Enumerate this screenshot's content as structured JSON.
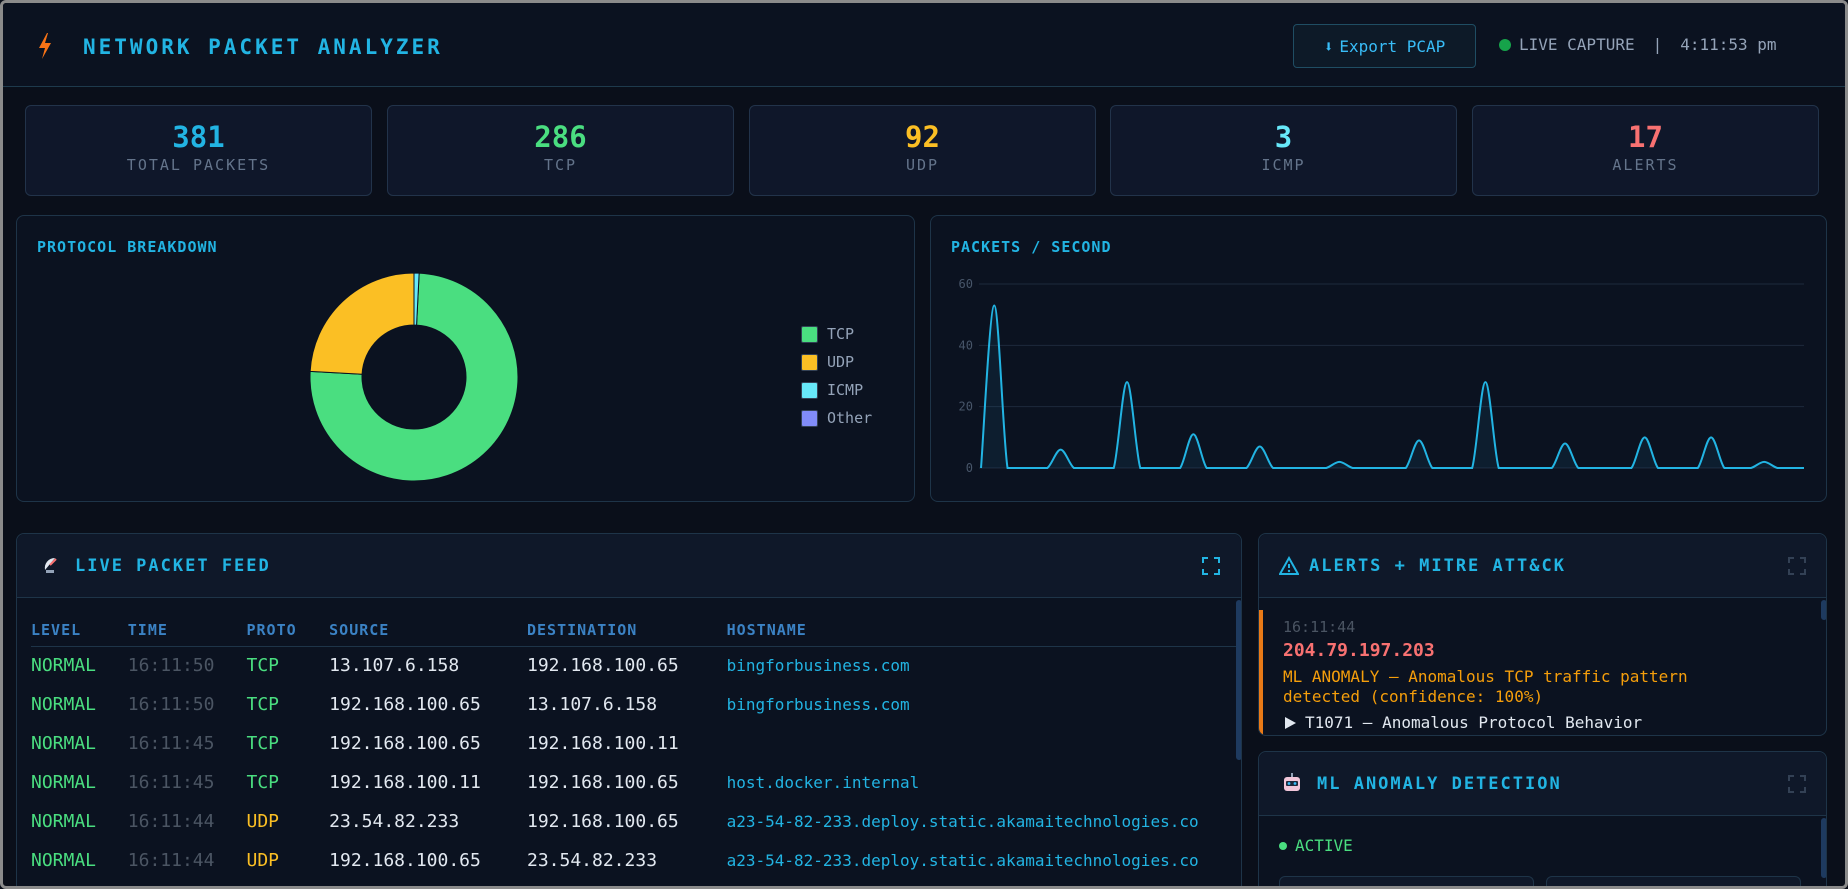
{
  "header": {
    "title": "NETWORK PACKET ANALYZER",
    "export_label": "Export PCAP",
    "export_glyph": "⬇",
    "live_label": "LIVE CAPTURE",
    "separator": "|",
    "clock": "4:11:53 pm"
  },
  "stats": [
    {
      "value": "381",
      "label": "TOTAL PACKETS",
      "color": "#22b4e3"
    },
    {
      "value": "286",
      "label": "TCP",
      "color": "#4ade80"
    },
    {
      "value": "92",
      "label": "UDP",
      "color": "#fbbf24"
    },
    {
      "value": "3",
      "label": "ICMP",
      "color": "#67e8f9"
    },
    {
      "value": "17",
      "label": "ALERTS",
      "color": "#f87171"
    }
  ],
  "protocol_panel": {
    "title": "PROTOCOL BREAKDOWN",
    "legend": [
      {
        "label": "TCP",
        "color": "#4ade80"
      },
      {
        "label": "UDP",
        "color": "#fbbf24"
      },
      {
        "label": "ICMP",
        "color": "#67e8f9"
      },
      {
        "label": "Other",
        "color": "#818cf8"
      }
    ]
  },
  "pps_panel": {
    "title": "PACKETS / SECOND"
  },
  "chart_data": [
    {
      "type": "pie",
      "title": "PROTOCOL BREAKDOWN",
      "donut": true,
      "categories": [
        "TCP",
        "UDP",
        "ICMP",
        "Other"
      ],
      "values": [
        286,
        92,
        3,
        0
      ],
      "colors": [
        "#4ade80",
        "#fbbf24",
        "#67e8f9",
        "#818cf8"
      ],
      "legend": "right"
    },
    {
      "type": "line",
      "title": "PACKETS / SECOND",
      "ylim": [
        0,
        60
      ],
      "yticks": [
        0,
        20,
        40,
        60
      ],
      "grid": true,
      "color": "#22b4e3",
      "values": [
        0,
        53,
        0,
        0,
        0,
        0,
        6,
        0,
        0,
        0,
        0,
        28,
        0,
        0,
        0,
        0,
        11,
        0,
        0,
        0,
        0,
        7,
        0,
        0,
        0,
        0,
        0,
        2,
        0,
        0,
        0,
        0,
        0,
        9,
        0,
        0,
        0,
        0,
        28,
        0,
        0,
        0,
        0,
        0,
        8,
        0,
        0,
        0,
        0,
        0,
        10,
        0,
        0,
        0,
        0,
        10,
        0,
        0,
        0,
        2,
        0,
        0,
        0
      ]
    }
  ],
  "feed": {
    "title": "LIVE PACKET FEED",
    "columns": [
      "LEVEL",
      "TIME",
      "PROTO",
      "SOURCE",
      "DESTINATION",
      "HOSTNAME"
    ],
    "rows": [
      {
        "level": "NORMAL",
        "time": "16:11:50",
        "proto": "TCP",
        "src": "13.107.6.158",
        "dst": "192.168.100.65",
        "host": "bingforbusiness.com"
      },
      {
        "level": "NORMAL",
        "time": "16:11:50",
        "proto": "TCP",
        "src": "192.168.100.65",
        "dst": "13.107.6.158",
        "host": "bingforbusiness.com"
      },
      {
        "level": "NORMAL",
        "time": "16:11:45",
        "proto": "TCP",
        "src": "192.168.100.65",
        "dst": "192.168.100.11",
        "host": ""
      },
      {
        "level": "NORMAL",
        "time": "16:11:45",
        "proto": "TCP",
        "src": "192.168.100.11",
        "dst": "192.168.100.65",
        "host": "host.docker.internal"
      },
      {
        "level": "NORMAL",
        "time": "16:11:44",
        "proto": "UDP",
        "src": "23.54.82.233",
        "dst": "192.168.100.65",
        "host": "a23-54-82-233.deploy.static.akamaitechnologies.co"
      },
      {
        "level": "NORMAL",
        "time": "16:11:44",
        "proto": "UDP",
        "src": "192.168.100.65",
        "dst": "23.54.82.233",
        "host": "a23-54-82-233.deploy.static.akamaitechnologies.co"
      }
    ]
  },
  "alerts": {
    "title": "ALERTS + MITRE ATT&CK",
    "items": [
      {
        "time": "16:11:44",
        "ip": "204.79.197.203",
        "message": "ML ANOMALY — Anomalous TCP traffic pattern detected (confidence: 100%)",
        "mitre": "T1071 — Anomalous Protocol Behavior"
      }
    ]
  },
  "ml": {
    "title": "ML ANOMALY DETECTION",
    "status": "ACTIVE"
  }
}
